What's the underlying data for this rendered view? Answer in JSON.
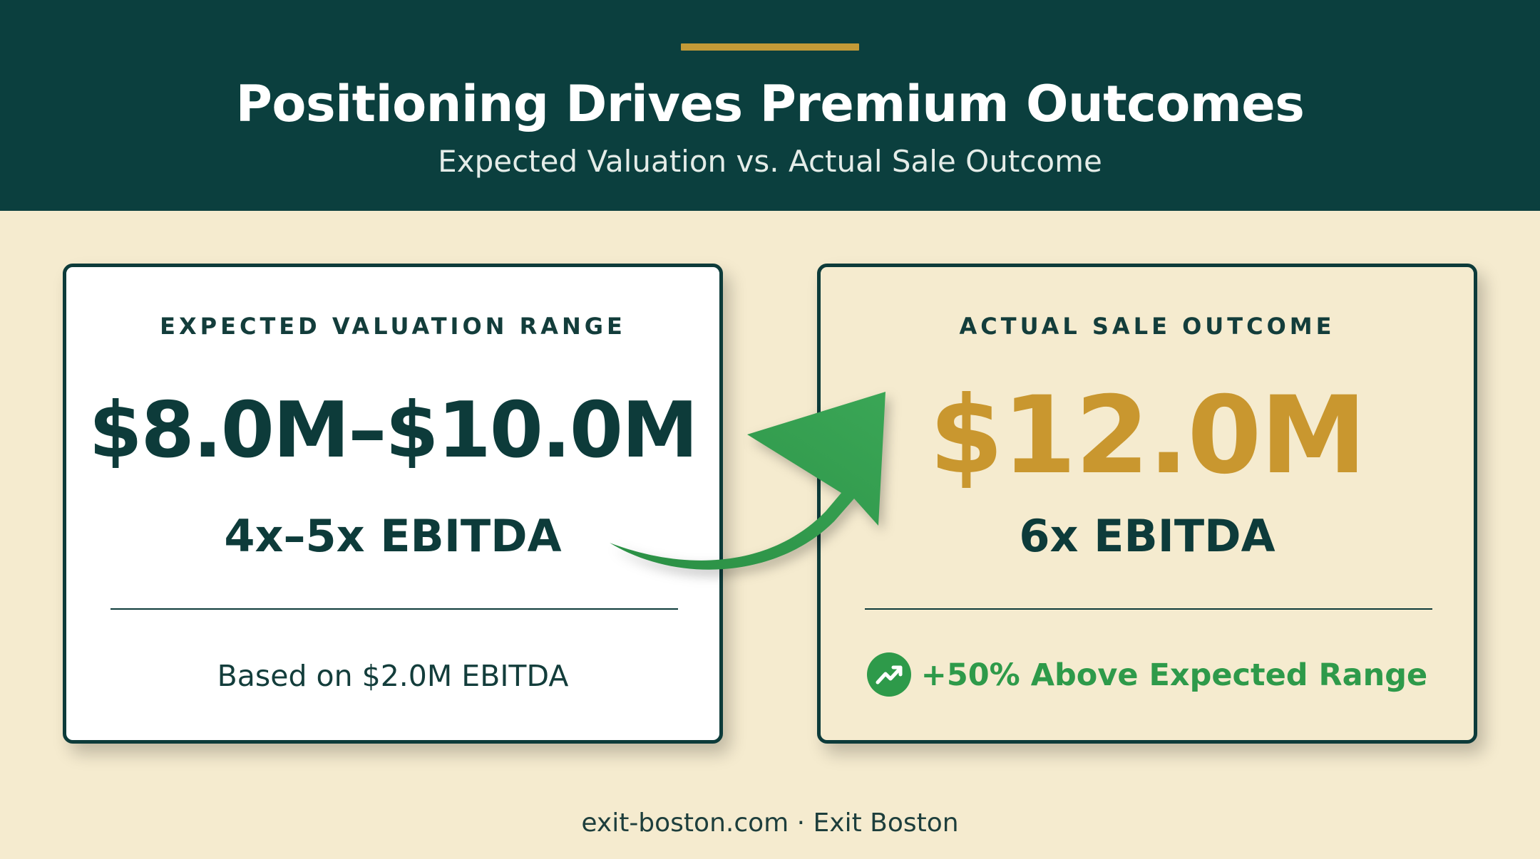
{
  "header": {
    "title": "Positioning Drives Premium Outcomes",
    "subtitle": "Expected Valuation vs. Actual Sale Outcome"
  },
  "expected_card": {
    "label": "EXPECTED VALUATION RANGE",
    "value": "$8.0M–$10.0M",
    "multiple": "4x–5x EBITDA",
    "footnote": "Based on $2.0M EBITDA"
  },
  "actual_card": {
    "label": "ACTUAL SALE OUTCOME",
    "value": "$12.0M",
    "multiple": "6x EBITDA",
    "highlight": "+50% Above Expected Range",
    "highlight_icon": "trending-up-icon"
  },
  "footer": {
    "text": "exit-boston.com · Exit Boston"
  },
  "colors": {
    "header_bg": "#0b3f3e",
    "page_bg": "#f5ebcf",
    "accent_gold": "#c9972f",
    "positive_green": "#2e9a4a",
    "text_dark": "#0d3b3a"
  }
}
